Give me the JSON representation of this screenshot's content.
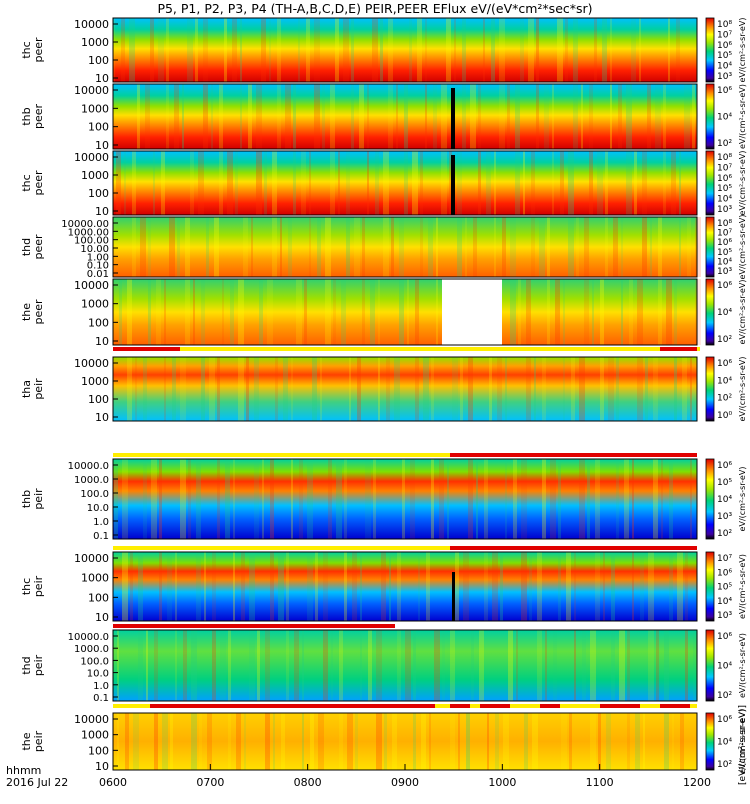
{
  "title": "P5, P1, P2, P3, P4 (TH-A,B,C,D,E) PEIR,PEER EFlux eV/(eV*cm²*sec*sr)",
  "x_axis": {
    "ticks": [
      "0600",
      "0700",
      "0800",
      "0900",
      "1000",
      "1100",
      "1200"
    ],
    "label_line1": "hhmm",
    "label_line2": "2016 Jul 22"
  },
  "colorbar_unit": "eV/(cm²-s-sr-eV)",
  "colorbar_unit_bottom": "[eV/(cm²-s-sr-eV)]",
  "colors": {
    "low": "#0000c8",
    "mid": "#00c8a0",
    "high": "#ff8000",
    "max": "#e00000",
    "flag": "#e00000",
    "flag_alt": "#ffee00"
  },
  "chart_data": {
    "type": "heatmap",
    "x_range_hhmm": [
      "0600",
      "1200"
    ],
    "y_scale": "log",
    "color_scale": "log",
    "panels": [
      {
        "probe": "thc",
        "species": "peer",
        "yticks": [
          "10000",
          "1000",
          "100",
          "10"
        ],
        "cbar_ticks": [
          "10⁸",
          "10⁷",
          "10⁶",
          "10⁵",
          "10⁴",
          "10³"
        ]
      },
      {
        "probe": "thb",
        "species": "peer",
        "yticks": [
          "10000",
          "1000",
          "100",
          "10"
        ],
        "cbar_ticks": [
          "10⁶",
          "10⁴",
          "10²"
        ]
      },
      {
        "probe": "thc",
        "species": "peer",
        "yticks": [
          "10000",
          "1000",
          "100",
          "10"
        ],
        "cbar_ticks": [
          "10⁸",
          "10⁷",
          "10⁶",
          "10⁵",
          "10⁴",
          "10³"
        ]
      },
      {
        "probe": "thd",
        "species": "peer",
        "yticks": [
          "10000.00",
          "1000.00",
          "100.00",
          "10.00",
          "1.00",
          "0.10",
          "0.01"
        ],
        "cbar_ticks": [
          "10⁸",
          "10⁷",
          "10⁶",
          "10⁵",
          "10⁴",
          "10³"
        ]
      },
      {
        "probe": "the",
        "species": "peer",
        "yticks": [
          "10000",
          "1000",
          "100",
          "10"
        ],
        "cbar_ticks": [
          "10⁶",
          "10⁴",
          "10²"
        ]
      },
      {
        "probe": "tha",
        "species": "peir",
        "yticks": [
          "10000",
          "1000",
          "100",
          "10"
        ],
        "cbar_ticks": [
          "10⁶",
          "10⁴",
          "10²",
          "10⁰"
        ]
      },
      {
        "probe": "thb",
        "species": "peir",
        "yticks": [
          "10000.0",
          "1000.0",
          "100.0",
          "10.0",
          "1.0",
          "0.1"
        ],
        "cbar_ticks": [
          "10⁶",
          "10⁵",
          "10⁴",
          "10³",
          "10²"
        ]
      },
      {
        "probe": "thc",
        "species": "peir",
        "yticks": [
          "10000",
          "1000",
          "100",
          "10"
        ],
        "cbar_ticks": [
          "10⁷",
          "10⁶",
          "10⁵",
          "10⁴",
          "10³"
        ]
      },
      {
        "probe": "thd",
        "species": "peir",
        "yticks": [
          "10000.0",
          "1000.0",
          "100.0",
          "10.0",
          "1.0",
          "0.1"
        ],
        "cbar_ticks": [
          "10⁶",
          "10⁴",
          "10²"
        ]
      },
      {
        "probe": "the",
        "species": "peir",
        "yticks": [
          "10000",
          "1000",
          "100",
          "10"
        ],
        "cbar_ticks": [
          "10⁶",
          "10⁴",
          "10²"
        ]
      }
    ]
  }
}
